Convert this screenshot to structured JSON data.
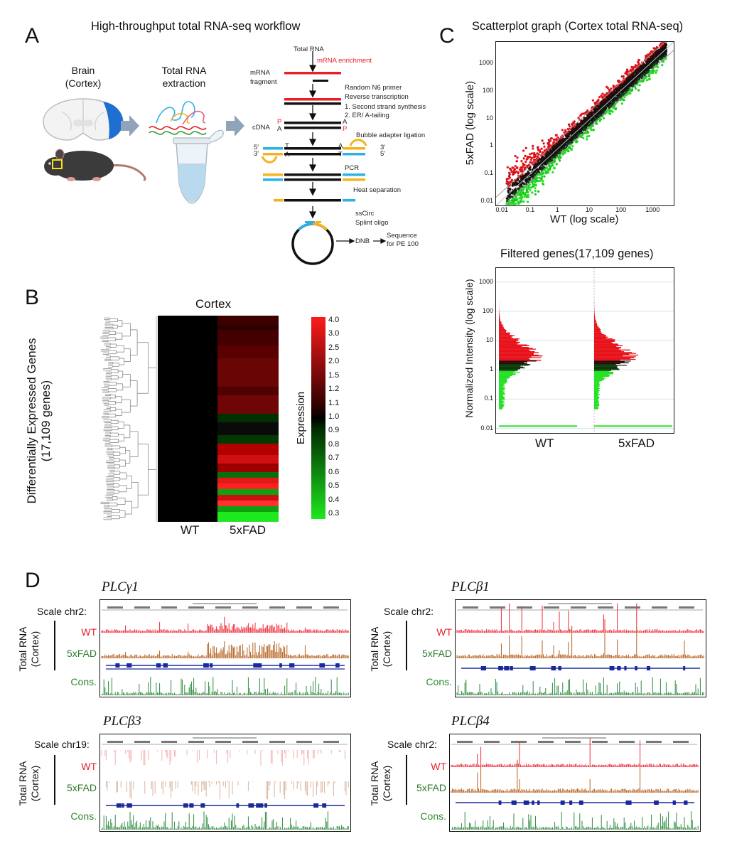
{
  "figure": {
    "panel_labels": [
      "A",
      "B",
      "C",
      "D"
    ]
  },
  "panelA": {
    "title": "High-throughput total RNA-seq workflow",
    "brain_label": [
      "Brain",
      "(Cortex)"
    ],
    "extraction_label": [
      "Total RNA",
      "extraction"
    ],
    "steps": {
      "total_rna": "Total RNA",
      "mrna_enrichment": "mRNA enrichment",
      "mrna_fragment": [
        "mRNA",
        "fragment"
      ],
      "random_primer": [
        "Random N6 primer",
        "Reverse transcription"
      ],
      "second_strand": [
        "1. Second strand synthesis",
        "2. ER/ A-tailing"
      ],
      "cdna": "cDNA",
      "bubble": "Bubble adapter ligation",
      "pcr": "PCR",
      "heat": "Heat separation",
      "sscirc": [
        "ssCirc",
        "Splint oligo"
      ],
      "dnb": "DNB",
      "sequence": [
        "Sequence",
        "for PE 100"
      ],
      "strand_5": "5'",
      "strand_3": "3'",
      "p": "P",
      "a": "A",
      "t": "T"
    },
    "colors": {
      "red": "#e8202a",
      "yellow": "#f5b21e",
      "blue": "#2bb1e6",
      "brain": "#1f6fd1",
      "arrow": "#8fa4b8"
    }
  },
  "panelB": {
    "title": "Cortex",
    "ylabel": [
      "Differentially Expressed Genes",
      "(17,109 genes)"
    ],
    "xlabels": [
      "WT",
      "5xFAD"
    ],
    "colorbar_label": "Expression",
    "colorbar_ticks": [
      "4.0",
      "3.0",
      "2.5",
      "2.0",
      "1.5",
      "1.2",
      "1.1",
      "1.0",
      "0.9",
      "0.8",
      "0.7",
      "0.6",
      "0.5",
      "0.4",
      "0.3"
    ]
  },
  "panelC": {
    "scatter_title": "Scatterplot graph (Cortex total RNA-seq)",
    "scatter_xlabel": "WT (log scale)",
    "scatter_ylabel": "5xFAD  (log scale)",
    "scatter_ticks": [
      "0.01",
      "0.1",
      "1",
      "10",
      "100",
      "1000"
    ],
    "dist_title": "Filtered genes(17,109 genes)",
    "dist_ylabel": "Normalized Intensity (log scale)",
    "dist_xlabels": [
      "WT",
      "5xFAD"
    ],
    "dist_ticks": [
      "1000",
      "100",
      "10",
      "1",
      "0.1",
      "0.01"
    ]
  },
  "panelD": {
    "tracks": [
      {
        "gene": "PLCγ1",
        "scale": "Scale chr2:",
        "wt": "WT",
        "fad": "5xFAD",
        "cons": "Cons."
      },
      {
        "gene": "PLCβ1",
        "scale": "Scale chr2:",
        "wt": "WT",
        "fad": "5xFAD",
        "cons": "Cons."
      },
      {
        "gene": "PLCβ3",
        "scale": "Scale chr19:",
        "wt": "WT",
        "fad": "5xFAD",
        "cons": "Cons."
      },
      {
        "gene": "PLCβ4",
        "scale": "Scale chr2:",
        "wt": "WT",
        "fad": "5xFAD",
        "cons": "Cons."
      }
    ],
    "side_label": [
      "Total RNA",
      "(Cortex)"
    ]
  },
  "chart_data": [
    {
      "type": "heatmap",
      "title": "Cortex",
      "ylabel": "Differentially Expressed Genes (17,109 genes)",
      "xlabels": [
        "WT",
        "5xFAD"
      ],
      "colorbar": {
        "label": "Expression",
        "min": 0.3,
        "max": 4.0,
        "colors": [
          "#1ee81e",
          "#000000",
          "#ff1a1a"
        ]
      }
    },
    {
      "type": "scatter",
      "title": "Scatterplot graph (Cortex total RNA-seq)",
      "xlabel": "WT (log scale)",
      "ylabel": "5xFAD  (log scale)",
      "xscale": "log",
      "yscale": "log",
      "xlim": [
        0.007,
        6000
      ],
      "ylim": [
        0.007,
        6000
      ]
    },
    {
      "type": "scatter",
      "title": "Filtered genes(17,109 genes)",
      "ylabel": "Normalized Intensity (log scale)",
      "categories": [
        "WT",
        "5xFAD"
      ],
      "yscale": "log",
      "ylim": [
        0.007,
        3000
      ]
    }
  ]
}
